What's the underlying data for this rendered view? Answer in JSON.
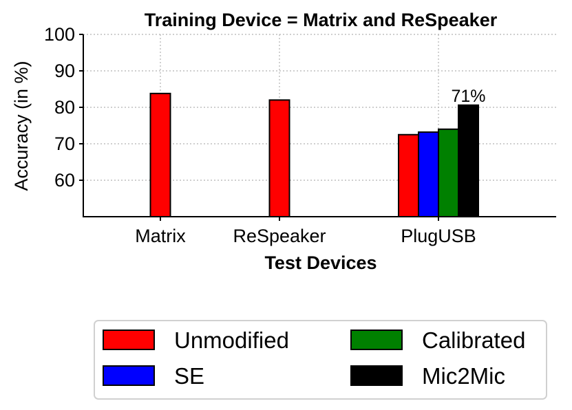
{
  "chart_data": {
    "type": "bar",
    "title": "Training Device = Matrix and ReSpeaker",
    "xlabel": "Test Devices",
    "ylabel": "Accuracy (in %)",
    "ylim": [
      50,
      100
    ],
    "yticks": [
      60,
      70,
      80,
      90,
      100
    ],
    "grid": true,
    "legend_position": "bottom",
    "legend_columns": 2,
    "categories": [
      "Matrix",
      "ReSpeaker",
      "PlugUSB"
    ],
    "series": [
      {
        "name": "Unmodified",
        "color": "#ff0000",
        "values": [
          83.8,
          82.0,
          72.5
        ]
      },
      {
        "name": "SE",
        "color": "#0000ff",
        "values": [
          null,
          null,
          73.2
        ]
      },
      {
        "name": "Calibrated",
        "color": "#008000",
        "values": [
          null,
          null,
          74.0
        ]
      },
      {
        "name": "Mic2Mic",
        "color": "#000000",
        "values": [
          null,
          null,
          80.6
        ]
      }
    ],
    "annotations": [
      {
        "category": "PlugUSB",
        "series": "Mic2Mic",
        "text": "71%"
      }
    ]
  }
}
